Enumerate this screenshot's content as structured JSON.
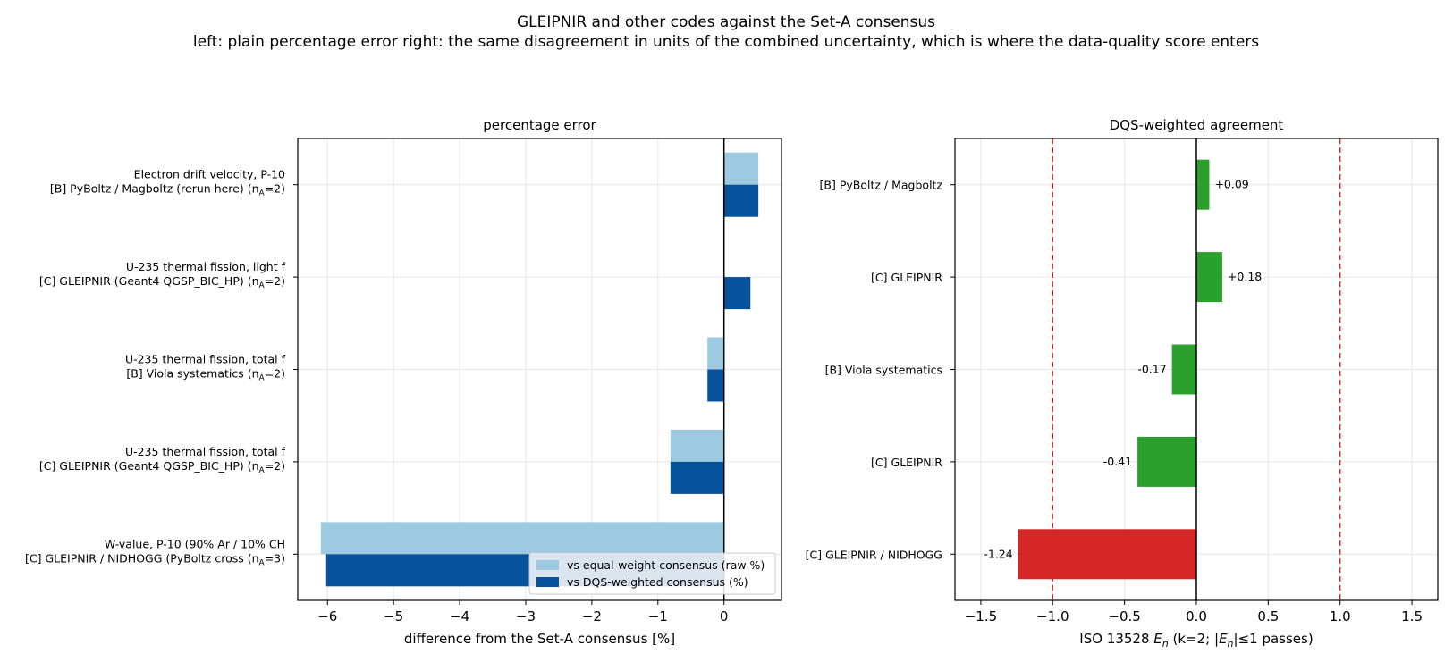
{
  "figure": {
    "title_line1": "GLEIPNIR and other codes against the Set-A consensus",
    "title_line2": "left: plain percentage error   right: the same disagreement in units of the combined uncertainty, which is where the data-quality score enters"
  },
  "colors": {
    "raw": "#9ecae1",
    "dqs": "#08519c",
    "pass": "#2ca02c",
    "fail": "#d62728",
    "limit": "#d62728",
    "grid": "#e6e6e6"
  },
  "chart_data": [
    {
      "type": "bar",
      "orientation": "horizontal",
      "title": "percentage error",
      "xlabel": "difference from the Set-A consensus [%]",
      "xlim": [
        -6.45,
        0.87
      ],
      "xticks": [
        -6,
        -5,
        -4,
        -3,
        -2,
        -1,
        0
      ],
      "xtick_labels": [
        "−6",
        "−5",
        "−4",
        "−3",
        "−2",
        "−1",
        "0"
      ],
      "grid": true,
      "legend_position": "lower-right",
      "categories": [
        {
          "line1": "Electron drift velocity, P-10",
          "line2": "[B] PyBoltz / Magboltz (rerun here)  (n",
          "sub": "A",
          "tail": "=2)"
        },
        {
          "line1": "U-235 thermal fission, light f",
          "line2": "[C] GLEIPNIR (Geant4 QGSP_BIC_HP)  (n",
          "sub": "A",
          "tail": "=2)"
        },
        {
          "line1": "U-235 thermal fission, total f",
          "line2": "[B] Viola systematics  (n",
          "sub": "A",
          "tail": "=2)"
        },
        {
          "line1": "U-235 thermal fission, total f",
          "line2": "[C] GLEIPNIR (Geant4 QGSP_BIC_HP)  (n",
          "sub": "A",
          "tail": "=2)"
        },
        {
          "line1": "W-value, P-10 (90% Ar / 10% CH",
          "line2": "[C] GLEIPNIR / NIDHOGG (PyBoltz cross   (n",
          "sub": "A",
          "tail": "=3)"
        }
      ],
      "series": [
        {
          "name": "vs equal-weight consensus (raw %)",
          "values": [
            0.52,
            0.0,
            -0.25,
            -0.81,
            -6.1
          ]
        },
        {
          "name": "vs DQS-weighted consensus (%)",
          "values": [
            0.52,
            0.4,
            -0.25,
            -0.81,
            -6.02
          ]
        }
      ]
    },
    {
      "type": "bar",
      "orientation": "horizontal",
      "title": "DQS-weighted agreement",
      "xlabel_parts": [
        "ISO 13528 ",
        "E",
        "n",
        "  (k=2; |",
        "E",
        "n",
        "|≤1 passes)"
      ],
      "xlim": [
        -1.68,
        1.68
      ],
      "xticks": [
        -1.5,
        -1.0,
        -0.5,
        0.0,
        0.5,
        1.0,
        1.5
      ],
      "xtick_labels": [
        "−1.5",
        "−1.0",
        "−0.5",
        "0.0",
        "0.5",
        "1.0",
        "1.5"
      ],
      "grid": true,
      "reference_lines": [
        -1.0,
        1.0
      ],
      "categories": [
        "[B] PyBoltz / Magboltz",
        "[C] GLEIPNIR",
        "[B] Viola systematics",
        "[C] GLEIPNIR",
        "[C] GLEIPNIR / NIDHOGG"
      ],
      "values": [
        0.09,
        0.18,
        -0.17,
        -0.41,
        -1.24
      ],
      "data_labels": [
        "+0.09",
        "+0.18",
        "-0.17",
        "-0.41",
        "-1.24"
      ]
    }
  ]
}
